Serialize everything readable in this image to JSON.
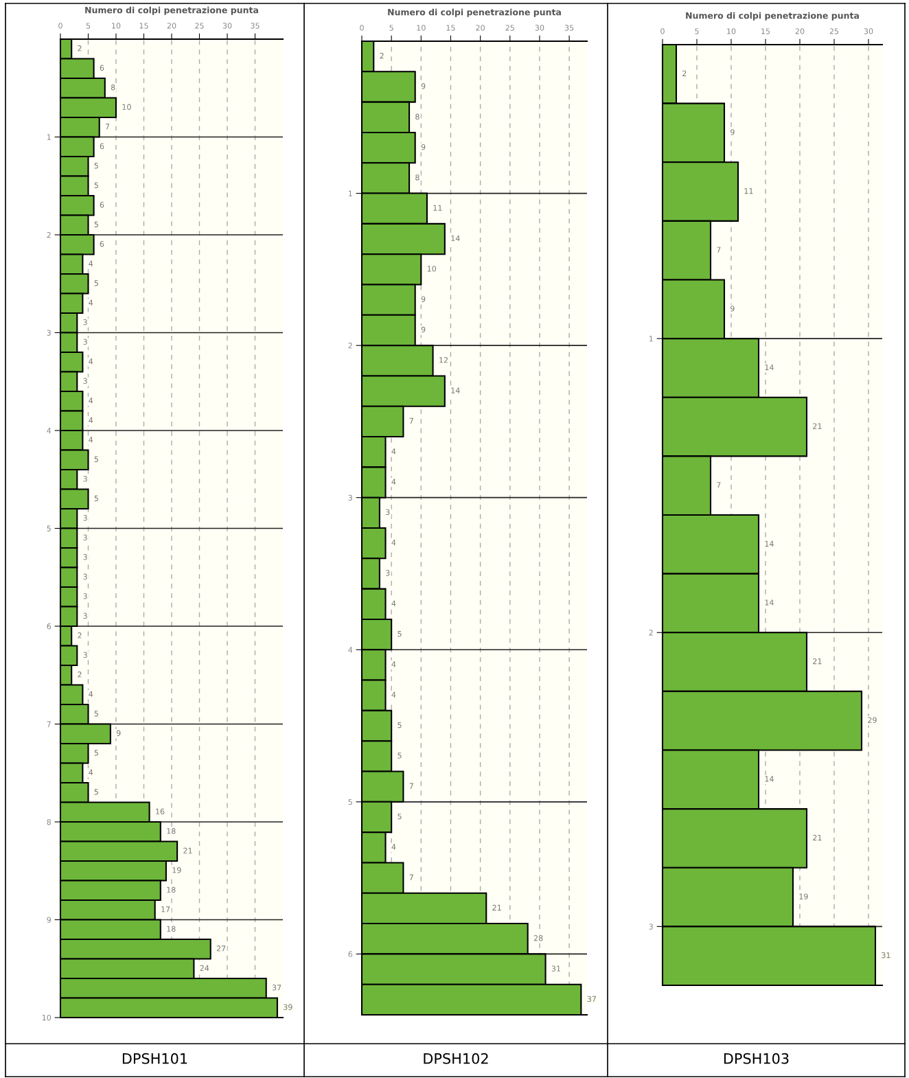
{
  "chart_data": [
    {
      "type": "bar",
      "orientation": "horizontal",
      "title": "DPSH101",
      "xlabel": "Numero di colpi penetrazione punta",
      "color": "#6db63a",
      "data_labels": true,
      "grid": true,
      "x": [
        0.1,
        0.3,
        0.5,
        0.7,
        0.9,
        1.1,
        1.3,
        1.5,
        1.7,
        1.9,
        2.1,
        2.3,
        2.5,
        2.7,
        2.9,
        3.1,
        3.3,
        3.5,
        3.7,
        3.9,
        4.1,
        4.3,
        4.5,
        4.7,
        4.9,
        5.1,
        5.3,
        5.5,
        5.7,
        5.9,
        6.1,
        6.3,
        6.5,
        6.7,
        6.9,
        7.1,
        7.3,
        7.5,
        7.7,
        7.9,
        8.1,
        8.3,
        8.5,
        8.7,
        8.9,
        9.1,
        9.3,
        9.5,
        9.7,
        9.9
      ],
      "values": [
        2,
        6,
        8,
        10,
        7,
        6,
        5,
        5,
        6,
        5,
        6,
        4,
        5,
        4,
        3,
        3,
        4,
        3,
        4,
        4,
        4,
        5,
        3,
        5,
        3,
        3,
        3,
        3,
        3,
        3,
        2,
        3,
        2,
        4,
        5,
        9,
        5,
        4,
        5,
        16,
        18,
        21,
        19,
        18,
        17,
        18,
        27,
        24,
        37,
        39
      ],
      "xlim": [
        0,
        40
      ],
      "xticks": [
        0,
        5,
        10,
        15,
        20,
        25,
        30,
        35
      ],
      "ylim": [
        10,
        0
      ],
      "yticks": [
        1,
        2,
        3,
        4,
        5,
        6,
        7,
        8,
        9,
        10
      ]
    },
    {
      "type": "bar",
      "orientation": "horizontal",
      "title": "DPSH102",
      "xlabel": "Numero di colpi penetrazione punta",
      "color": "#6db63a",
      "data_labels": true,
      "grid": true,
      "x": [
        0.1,
        0.3,
        0.5,
        0.7,
        0.9,
        1.1,
        1.3,
        1.5,
        1.7,
        1.9,
        2.1,
        2.3,
        2.5,
        2.7,
        2.9,
        3.1,
        3.3,
        3.5,
        3.7,
        3.9,
        4.1,
        4.3,
        4.5,
        4.7,
        4.9,
        5.1,
        5.3,
        5.5,
        5.7,
        5.9,
        6.1,
        6.3
      ],
      "values": [
        2,
        9,
        8,
        9,
        8,
        11,
        14,
        10,
        9,
        9,
        12,
        14,
        7,
        4,
        4,
        3,
        4,
        3,
        4,
        5,
        4,
        4,
        5,
        5,
        7,
        5,
        4,
        7,
        21,
        28,
        31,
        37
      ],
      "xlim": [
        0,
        38
      ],
      "xticks": [
        0,
        5,
        10,
        15,
        20,
        25,
        30,
        35
      ],
      "ylim": [
        6.4,
        0
      ],
      "yticks": [
        1,
        2,
        3,
        4,
        5,
        6
      ]
    },
    {
      "type": "bar",
      "orientation": "horizontal",
      "title": "DPSH103",
      "xlabel": "Numero di colpi penetrazione punta",
      "color": "#6db63a",
      "data_labels": true,
      "grid": true,
      "x": [
        0.1,
        0.3,
        0.5,
        0.7,
        0.9,
        1.1,
        1.3,
        1.5,
        1.7,
        1.9,
        2.1,
        2.3,
        2.5,
        2.7,
        2.9,
        3.1
      ],
      "values": [
        2,
        9,
        11,
        7,
        9,
        14,
        21,
        7,
        14,
        14,
        21,
        29,
        14,
        21,
        19,
        31
      ],
      "xlim": [
        0,
        32
      ],
      "xticks": [
        0,
        5,
        10,
        15,
        20,
        25,
        30
      ],
      "ylim": [
        3.2,
        0
      ],
      "yticks": [
        1,
        2,
        3
      ]
    }
  ]
}
